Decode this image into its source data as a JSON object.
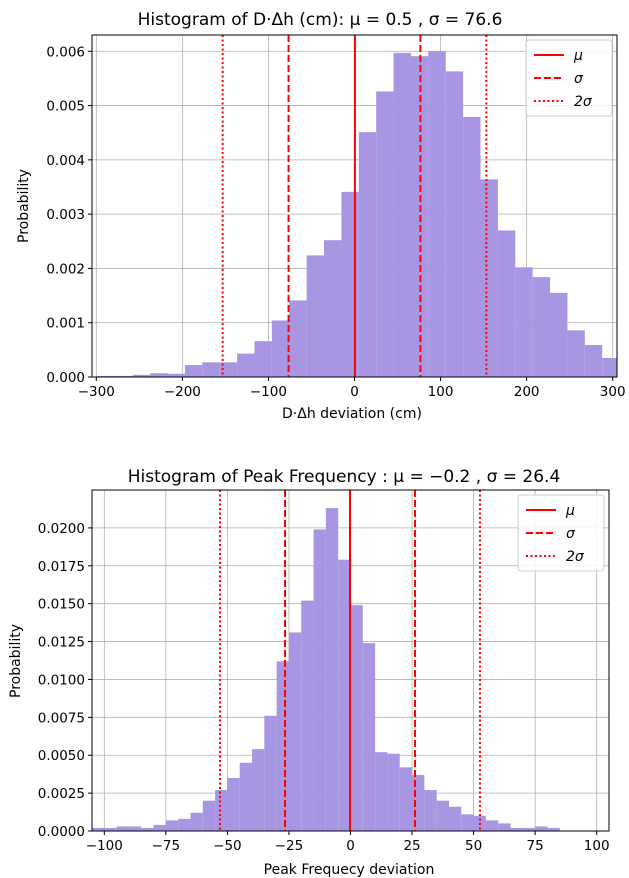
{
  "chart_data": [
    {
      "type": "histogram",
      "title": "Histogram of D·Δh (cm):  μ = 0.5 ,     σ = 76.6",
      "xlabel": "D·Δh  deviation (cm)",
      "ylabel": "Probability",
      "xlim": [
        -305,
        305
      ],
      "ylim": [
        0,
        0.0063
      ],
      "xticks": [
        "−300",
        "−200",
        "−100",
        "0",
        "100",
        "200",
        "300"
      ],
      "xtick_values": [
        -300,
        -200,
        -100,
        0,
        100,
        200,
        300
      ],
      "yticks": [
        "0.000",
        "0.001",
        "0.002",
        "0.003",
        "0.004",
        "0.005",
        "0.006"
      ],
      "ytick_values": [
        0,
        0.001,
        0.002,
        0.003,
        0.004,
        0.005,
        0.006
      ],
      "bin_start": -298,
      "bin_width": 20.2,
      "values": [
        2e-05,
        2e-05,
        4e-05,
        7e-05,
        6e-05,
        0.00022,
        0.00027,
        0.00027,
        0.00043,
        0.00066,
        0.00104,
        0.00141,
        0.00224,
        0.00252,
        0.00341,
        0.00451,
        0.00526,
        0.00597,
        0.00591,
        0.006,
        0.00563,
        0.00479,
        0.00364,
        0.0027,
        0.00202,
        0.00184,
        0.00155,
        0.00086,
        0.00059,
        0.00035,
        0.0003,
        0.0001,
        0.00011,
        5e-05,
        5e-05,
        3e-05,
        4e-05
      ],
      "mu": 0.5,
      "sigma": 76.6,
      "lines": [
        {
          "label": "μ",
          "style": "solid",
          "x": 0.5
        },
        {
          "label": "σ",
          "style": "dashed",
          "x": [
            -76.6,
            76.6
          ]
        },
        {
          "label": "2σ",
          "style": "dotted",
          "x": [
            -153.2,
            153.2
          ]
        }
      ],
      "legend_position": "top-right",
      "grid": true,
      "bar_color": "#a896e2",
      "line_color": "#ff0000"
    },
    {
      "type": "histogram",
      "title": "Histogram of Peak Frequency :  μ = −0.2 ,     σ = 26.4",
      "xlabel": "Peak Frequecy deviation",
      "ylabel": "Probability",
      "xlim": [
        -105,
        105
      ],
      "ylim": [
        0,
        0.0225
      ],
      "xticks": [
        "−100",
        "−75",
        "−50",
        "−25",
        "0",
        "25",
        "50",
        "75",
        "100"
      ],
      "xtick_values": [
        -100,
        -75,
        -50,
        -25,
        0,
        25,
        50,
        75,
        100
      ],
      "yticks": [
        "0.0000",
        "0.0025",
        "0.0050",
        "0.0075",
        "0.0100",
        "0.0125",
        "0.0150",
        "0.0175",
        "0.0200"
      ],
      "ytick_values": [
        0,
        0.0025,
        0.005,
        0.0075,
        0.01,
        0.0125,
        0.015,
        0.0175,
        0.02
      ],
      "bin_start": -105,
      "bin_width": 5,
      "values": [
        0.0002,
        0.0002,
        0.0003,
        0.0003,
        0.0002,
        0.0004,
        0.0007,
        0.0008,
        0.0012,
        0.002,
        0.0027,
        0.0035,
        0.0045,
        0.0054,
        0.0076,
        0.0112,
        0.0131,
        0.0152,
        0.0199,
        0.0213,
        0.0179,
        0.0149,
        0.0124,
        0.0052,
        0.0051,
        0.0042,
        0.0037,
        0.0027,
        0.002,
        0.0016,
        0.0011,
        0.001,
        0.0007,
        0.0005,
        0.0002,
        0.0002,
        0.0003,
        0.0002
      ],
      "mu": -0.2,
      "sigma": 26.4,
      "lines": [
        {
          "label": "μ",
          "style": "solid",
          "x": -0.2
        },
        {
          "label": "σ",
          "style": "dashed",
          "x": [
            -26.6,
            26.2
          ]
        },
        {
          "label": "2σ",
          "style": "dotted",
          "x": [
            -53.0,
            52.6
          ]
        }
      ],
      "legend_position": "top-right",
      "grid": true,
      "bar_color": "#a896e2",
      "line_color": "#ff0000"
    }
  ]
}
